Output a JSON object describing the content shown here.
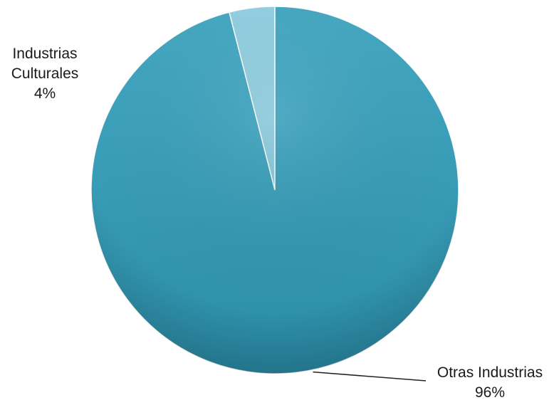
{
  "chart_data": {
    "type": "pie",
    "title": "",
    "series": [
      {
        "values": [
          4,
          96
        ],
        "categories": [
          "Industrias Culturales",
          "Otras Industrias"
        ]
      }
    ],
    "slices": [
      {
        "label_lines": [
          "Industrias",
          "Culturales"
        ],
        "label": "Industrias Culturales",
        "value": 4,
        "percent_label": "4%",
        "color": "#86cce0"
      },
      {
        "label_lines": [
          "Otras Industrias"
        ],
        "label": "Otras Industrias",
        "value": 96,
        "percent_label": "96%",
        "color": "#2f9fbd"
      }
    ],
    "start_angle_deg": 0,
    "direction": "counterclockwise",
    "legend": "none",
    "data_labels": "outside"
  }
}
